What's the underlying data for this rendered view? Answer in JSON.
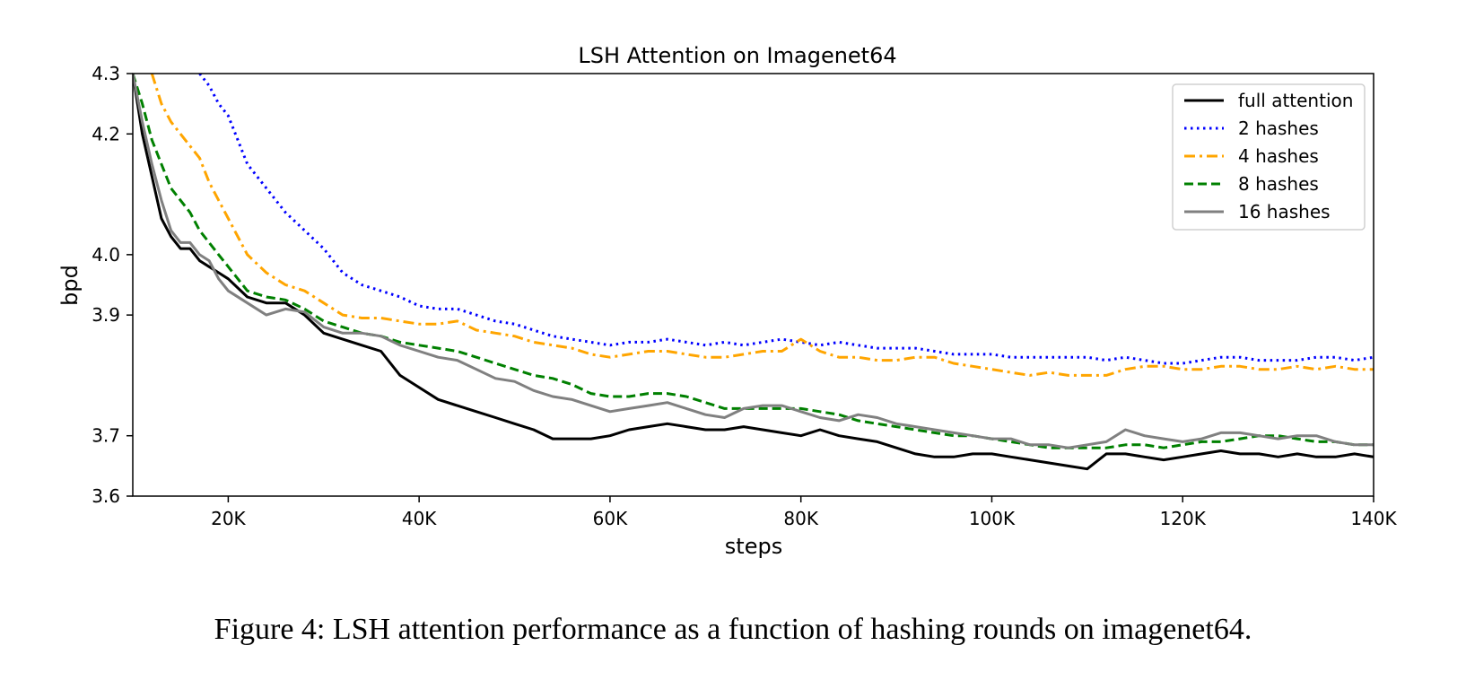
{
  "caption": "Figure 4: LSH attention performance as a function of hashing rounds on imagenet64.",
  "chart_data": {
    "type": "line",
    "title": "LSH Attention on Imagenet64",
    "xlabel": "steps",
    "ylabel": "bpd",
    "xlim": [
      10000,
      140000
    ],
    "ylim": [
      3.6,
      4.3
    ],
    "xticks": [
      {
        "value": 20000,
        "label": "20K"
      },
      {
        "value": 40000,
        "label": "40K"
      },
      {
        "value": 60000,
        "label": "60K"
      },
      {
        "value": 80000,
        "label": "80K"
      },
      {
        "value": 100000,
        "label": "100K"
      },
      {
        "value": 120000,
        "label": "120K"
      },
      {
        "value": 140000,
        "label": "140K"
      }
    ],
    "yticks": [
      {
        "value": 3.6,
        "label": "3.6"
      },
      {
        "value": 3.7,
        "label": "3.7"
      },
      {
        "value": 3.9,
        "label": "3.9"
      },
      {
        "value": 4.0,
        "label": "4.0"
      },
      {
        "value": 4.2,
        "label": "4.2"
      },
      {
        "value": 4.3,
        "label": "4.3"
      }
    ],
    "grid": false,
    "legend_position": "top-right",
    "series": [
      {
        "name": "full attention",
        "color": "#000000",
        "dash": "solid",
        "x": [
          10000,
          11000,
          12000,
          13000,
          14000,
          15000,
          16000,
          17000,
          18000,
          19000,
          20000,
          22000,
          24000,
          26000,
          28000,
          30000,
          32000,
          34000,
          36000,
          38000,
          40000,
          42000,
          44000,
          46000,
          48000,
          50000,
          52000,
          54000,
          56000,
          58000,
          60000,
          62000,
          64000,
          66000,
          68000,
          70000,
          72000,
          74000,
          76000,
          78000,
          80000,
          82000,
          84000,
          86000,
          88000,
          90000,
          92000,
          94000,
          96000,
          98000,
          100000,
          102000,
          104000,
          106000,
          108000,
          110000,
          112000,
          114000,
          116000,
          118000,
          120000,
          122000,
          124000,
          126000,
          128000,
          130000,
          132000,
          134000,
          136000,
          138000,
          140000
        ],
        "y": [
          4.3,
          4.2,
          4.13,
          4.06,
          4.03,
          4.01,
          4.01,
          3.99,
          3.98,
          3.97,
          3.96,
          3.93,
          3.92,
          3.92,
          3.9,
          3.87,
          3.86,
          3.85,
          3.84,
          3.8,
          3.78,
          3.76,
          3.75,
          3.74,
          3.73,
          3.72,
          3.71,
          3.695,
          3.695,
          3.695,
          3.7,
          3.71,
          3.715,
          3.72,
          3.715,
          3.71,
          3.71,
          3.715,
          3.71,
          3.705,
          3.7,
          3.71,
          3.7,
          3.695,
          3.69,
          3.68,
          3.67,
          3.665,
          3.665,
          3.67,
          3.67,
          3.665,
          3.66,
          3.655,
          3.65,
          3.645,
          3.67,
          3.67,
          3.665,
          3.66,
          3.665,
          3.67,
          3.675,
          3.67,
          3.67,
          3.665,
          3.67,
          3.665,
          3.665,
          3.67,
          3.665
        ]
      },
      {
        "name": "2 hashes",
        "color": "#0000ff",
        "dash": "dotted",
        "x": [
          17000,
          18000,
          19000,
          20000,
          22000,
          24000,
          26000,
          28000,
          30000,
          32000,
          34000,
          36000,
          38000,
          40000,
          42000,
          44000,
          46000,
          48000,
          50000,
          52000,
          54000,
          56000,
          58000,
          60000,
          62000,
          64000,
          66000,
          68000,
          70000,
          72000,
          74000,
          76000,
          78000,
          80000,
          82000,
          84000,
          86000,
          88000,
          90000,
          92000,
          94000,
          96000,
          98000,
          100000,
          102000,
          104000,
          106000,
          108000,
          110000,
          112000,
          114000,
          116000,
          118000,
          120000,
          122000,
          124000,
          126000,
          128000,
          130000,
          132000,
          134000,
          136000,
          138000,
          140000
        ],
        "y": [
          4.3,
          4.28,
          4.25,
          4.23,
          4.15,
          4.11,
          4.07,
          4.04,
          4.01,
          3.97,
          3.95,
          3.94,
          3.93,
          3.915,
          3.91,
          3.91,
          3.9,
          3.89,
          3.885,
          3.875,
          3.865,
          3.86,
          3.855,
          3.85,
          3.855,
          3.855,
          3.86,
          3.855,
          3.85,
          3.855,
          3.85,
          3.855,
          3.86,
          3.855,
          3.85,
          3.855,
          3.85,
          3.845,
          3.845,
          3.845,
          3.84,
          3.835,
          3.835,
          3.835,
          3.83,
          3.83,
          3.83,
          3.83,
          3.83,
          3.825,
          3.83,
          3.825,
          3.82,
          3.82,
          3.825,
          3.83,
          3.83,
          3.825,
          3.825,
          3.825,
          3.83,
          3.83,
          3.825,
          3.83
        ]
      },
      {
        "name": "4 hashes",
        "color": "#ffa500",
        "dash": "dashdot",
        "x": [
          12000,
          13000,
          14000,
          15000,
          16000,
          17000,
          18000,
          19000,
          20000,
          22000,
          24000,
          26000,
          28000,
          30000,
          32000,
          34000,
          36000,
          38000,
          40000,
          42000,
          44000,
          46000,
          48000,
          50000,
          52000,
          54000,
          56000,
          58000,
          60000,
          62000,
          64000,
          66000,
          68000,
          70000,
          72000,
          74000,
          76000,
          78000,
          80000,
          82000,
          84000,
          86000,
          88000,
          90000,
          92000,
          94000,
          96000,
          98000,
          100000,
          102000,
          104000,
          106000,
          108000,
          110000,
          112000,
          114000,
          116000,
          118000,
          120000,
          122000,
          124000,
          126000,
          128000,
          130000,
          132000,
          134000,
          136000,
          138000,
          140000
        ],
        "y": [
          4.3,
          4.25,
          4.22,
          4.2,
          4.18,
          4.16,
          4.12,
          4.09,
          4.06,
          4.0,
          3.97,
          3.95,
          3.94,
          3.92,
          3.9,
          3.895,
          3.895,
          3.89,
          3.885,
          3.885,
          3.89,
          3.875,
          3.87,
          3.865,
          3.855,
          3.85,
          3.845,
          3.835,
          3.83,
          3.835,
          3.84,
          3.84,
          3.835,
          3.83,
          3.83,
          3.835,
          3.84,
          3.84,
          3.86,
          3.84,
          3.83,
          3.83,
          3.825,
          3.825,
          3.83,
          3.83,
          3.82,
          3.815,
          3.81,
          3.805,
          3.8,
          3.805,
          3.8,
          3.8,
          3.8,
          3.81,
          3.815,
          3.815,
          3.81,
          3.81,
          3.815,
          3.815,
          3.81,
          3.81,
          3.815,
          3.81,
          3.815,
          3.81,
          3.81
        ]
      },
      {
        "name": "8 hashes",
        "color": "#008000",
        "dash": "dashed",
        "x": [
          10000,
          11000,
          12000,
          13000,
          14000,
          15000,
          16000,
          17000,
          18000,
          19000,
          20000,
          22000,
          24000,
          26000,
          28000,
          30000,
          32000,
          34000,
          36000,
          38000,
          40000,
          42000,
          44000,
          46000,
          48000,
          50000,
          52000,
          54000,
          56000,
          58000,
          60000,
          62000,
          64000,
          66000,
          68000,
          70000,
          72000,
          74000,
          76000,
          78000,
          80000,
          82000,
          84000,
          86000,
          88000,
          90000,
          92000,
          94000,
          96000,
          98000,
          100000,
          102000,
          104000,
          106000,
          108000,
          110000,
          112000,
          114000,
          116000,
          118000,
          120000,
          122000,
          124000,
          126000,
          128000,
          130000,
          132000,
          134000,
          136000,
          138000,
          140000
        ],
        "y": [
          4.3,
          4.25,
          4.19,
          4.15,
          4.11,
          4.09,
          4.07,
          4.04,
          4.02,
          4.0,
          3.98,
          3.94,
          3.93,
          3.925,
          3.91,
          3.89,
          3.88,
          3.87,
          3.865,
          3.855,
          3.85,
          3.845,
          3.84,
          3.83,
          3.82,
          3.81,
          3.8,
          3.795,
          3.785,
          3.77,
          3.765,
          3.765,
          3.77,
          3.77,
          3.765,
          3.755,
          3.745,
          3.745,
          3.745,
          3.745,
          3.745,
          3.74,
          3.735,
          3.725,
          3.72,
          3.715,
          3.71,
          3.705,
          3.7,
          3.7,
          3.695,
          3.69,
          3.685,
          3.68,
          3.68,
          3.68,
          3.68,
          3.685,
          3.685,
          3.68,
          3.685,
          3.69,
          3.69,
          3.695,
          3.7,
          3.7,
          3.695,
          3.69,
          3.69,
          3.685,
          3.685
        ]
      },
      {
        "name": "16 hashes",
        "color": "#808080",
        "dash": "solid",
        "x": [
          10000,
          11000,
          12000,
          13000,
          14000,
          15000,
          16000,
          17000,
          18000,
          19000,
          20000,
          22000,
          24000,
          26000,
          28000,
          30000,
          32000,
          34000,
          36000,
          38000,
          40000,
          42000,
          44000,
          46000,
          48000,
          50000,
          52000,
          54000,
          56000,
          58000,
          60000,
          62000,
          64000,
          66000,
          68000,
          70000,
          72000,
          74000,
          76000,
          78000,
          80000,
          82000,
          84000,
          86000,
          88000,
          90000,
          92000,
          94000,
          96000,
          98000,
          100000,
          102000,
          104000,
          106000,
          108000,
          110000,
          112000,
          114000,
          116000,
          118000,
          120000,
          122000,
          124000,
          126000,
          128000,
          130000,
          132000,
          134000,
          136000,
          138000,
          140000
        ],
        "y": [
          4.3,
          4.22,
          4.15,
          4.09,
          4.04,
          4.02,
          4.02,
          4.0,
          3.99,
          3.96,
          3.94,
          3.92,
          3.9,
          3.91,
          3.905,
          3.88,
          3.87,
          3.87,
          3.865,
          3.85,
          3.84,
          3.83,
          3.825,
          3.81,
          3.795,
          3.79,
          3.775,
          3.765,
          3.76,
          3.75,
          3.74,
          3.745,
          3.75,
          3.755,
          3.745,
          3.735,
          3.73,
          3.745,
          3.75,
          3.75,
          3.74,
          3.73,
          3.725,
          3.735,
          3.73,
          3.72,
          3.715,
          3.71,
          3.705,
          3.7,
          3.695,
          3.695,
          3.685,
          3.685,
          3.68,
          3.685,
          3.69,
          3.71,
          3.7,
          3.695,
          3.69,
          3.695,
          3.705,
          3.705,
          3.7,
          3.695,
          3.7,
          3.7,
          3.69,
          3.685,
          3.685
        ]
      }
    ]
  }
}
